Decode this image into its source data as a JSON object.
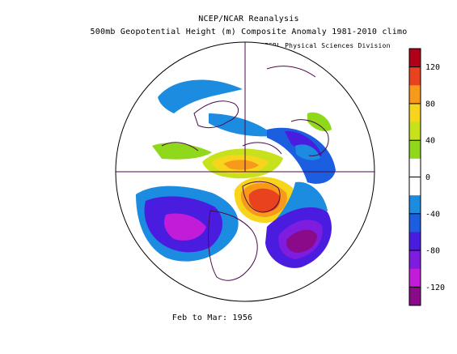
{
  "header": {
    "line1": "NCEP/NCAR Reanalysis",
    "line2": "500mb Geopotential Height (m) Composite Anomaly 1981-2010 climo",
    "credit": "NOAA/ESRL Physical Sciences Division"
  },
  "period": "Feb to Mar: 1956",
  "colorbar": {
    "ticks": [
      "120",
      "80",
      "40",
      "0",
      "-40",
      "-80",
      "-120"
    ],
    "colors": [
      "#b0001a",
      "#e8421e",
      "#f79a1c",
      "#f7d51c",
      "#c7e21c",
      "#8fd81c",
      "#ffffff",
      "#ffffff",
      "#1c8ce0",
      "#1c5ee0",
      "#4a1ce0",
      "#7e1ce0",
      "#c21cd8",
      "#8a0a8a"
    ]
  },
  "map": {
    "projection": "north polar stereographic",
    "variable": "500mb geopotential height anomaly",
    "units": "m"
  }
}
